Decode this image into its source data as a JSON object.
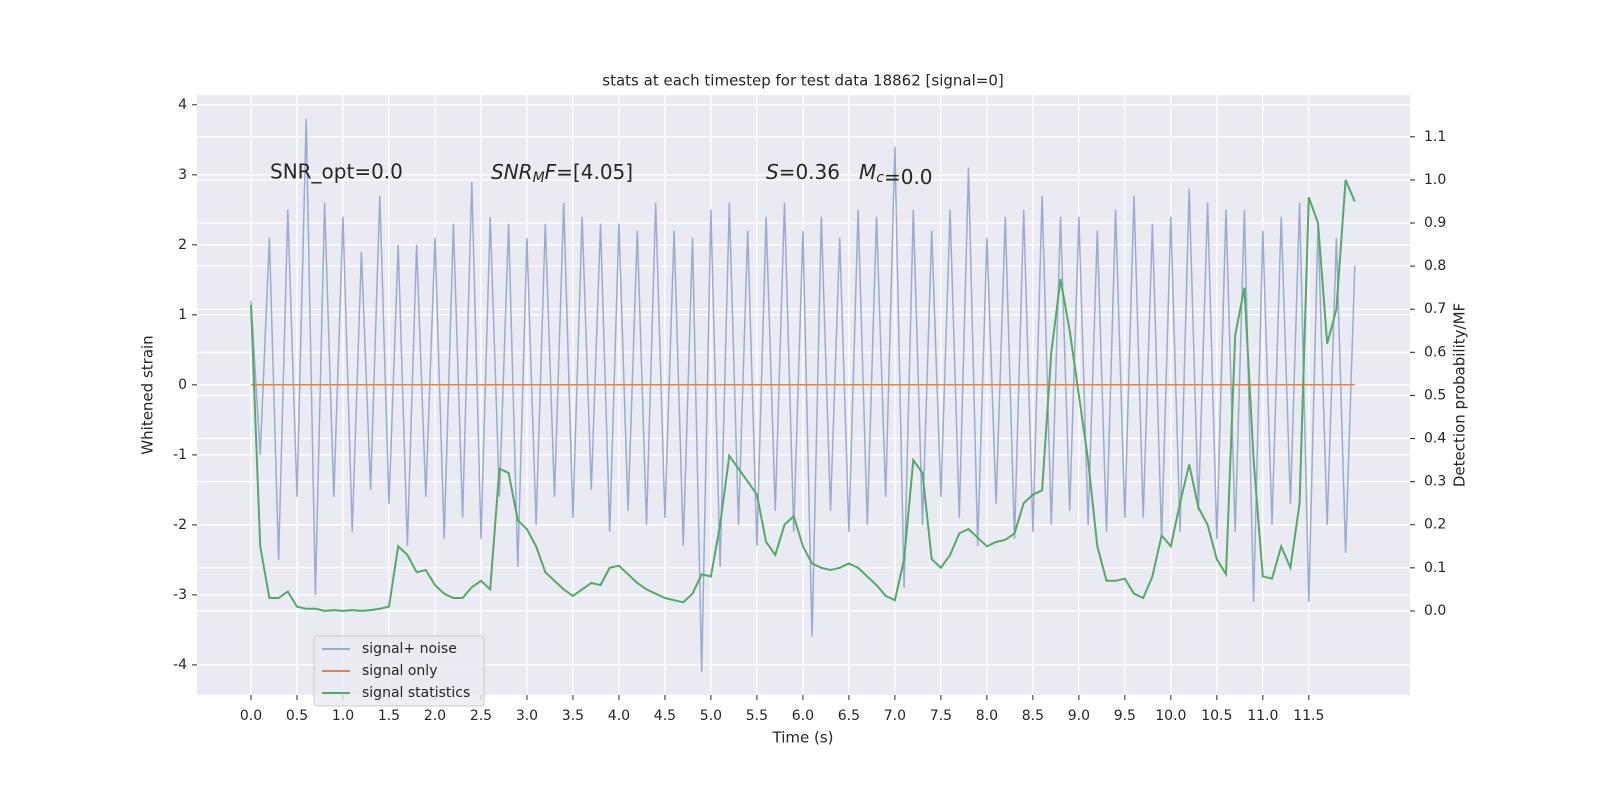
{
  "chart_data": {
    "type": "line",
    "title": "stats at each timestep for test data 18862 [signal=0]",
    "xlabel": "Time (s)",
    "ylabel": "Whitened strain",
    "y2label": "Detection probability/MF",
    "annotations": [
      {
        "text": "SNR_opt=0.0",
        "math": false
      },
      {
        "text": "SNR_MF=[4.05]",
        "math": true
      },
      {
        "text": "S=0.36",
        "math": true
      },
      {
        "text": "M_c=0.0",
        "math": true
      }
    ],
    "x": [
      0.0,
      0.1,
      0.2,
      0.3,
      0.4,
      0.5,
      0.6,
      0.7,
      0.8,
      0.9,
      1.0,
      1.1,
      1.2,
      1.3,
      1.4,
      1.5,
      1.6,
      1.7,
      1.8,
      1.9,
      2.0,
      2.1,
      2.2,
      2.3,
      2.4,
      2.5,
      2.6,
      2.7,
      2.8,
      2.9,
      3.0,
      3.1,
      3.2,
      3.3,
      3.4,
      3.5,
      3.6,
      3.7,
      3.8,
      3.9,
      4.0,
      4.1,
      4.2,
      4.3,
      4.4,
      4.5,
      4.6,
      4.7,
      4.8,
      4.9,
      5.0,
      5.1,
      5.2,
      5.3,
      5.4,
      5.5,
      5.6,
      5.7,
      5.8,
      5.9,
      6.0,
      6.1,
      6.2,
      6.3,
      6.4,
      6.5,
      6.6,
      6.7,
      6.8,
      6.9,
      7.0,
      7.1,
      7.2,
      7.3,
      7.4,
      7.5,
      7.6,
      7.7,
      7.8,
      7.9,
      8.0,
      8.1,
      8.2,
      8.3,
      8.4,
      8.5,
      8.6,
      8.7,
      8.8,
      8.9,
      9.0,
      9.1,
      9.2,
      9.3,
      9.4,
      9.5,
      9.6,
      9.7,
      9.8,
      9.9,
      10.0,
      10.1,
      10.2,
      10.3,
      10.4,
      10.5,
      10.6,
      10.7,
      10.8,
      10.9,
      11.0,
      11.1,
      11.2,
      11.3,
      11.4,
      11.5,
      11.6,
      11.7,
      11.8,
      11.9,
      12.0
    ],
    "series": [
      {
        "name": "signal+ noise",
        "color": "#9aabd0",
        "axis": "y",
        "values": [
          1.2,
          -1.0,
          2.1,
          -2.5,
          2.5,
          -1.6,
          3.8,
          -3.0,
          2.6,
          -1.6,
          2.4,
          -2.1,
          1.9,
          -1.5,
          2.7,
          -1.7,
          2.0,
          -2.3,
          2.0,
          -1.6,
          2.1,
          -2.2,
          2.3,
          -1.9,
          2.9,
          -2.2,
          2.4,
          -1.6,
          2.3,
          -2.6,
          2.1,
          -2.0,
          2.3,
          -1.6,
          2.6,
          -1.9,
          2.4,
          -1.5,
          2.3,
          -2.1,
          2.3,
          -1.8,
          2.2,
          -2.0,
          2.6,
          -1.9,
          2.2,
          -2.3,
          2.1,
          -4.1,
          2.5,
          -2.6,
          2.6,
          -2.0,
          2.2,
          -2.3,
          2.4,
          -1.8,
          2.6,
          -2.1,
          2.2,
          -3.6,
          2.4,
          -1.8,
          2.1,
          -2.1,
          2.5,
          -2.0,
          2.4,
          -1.6,
          3.4,
          -2.9,
          2.5,
          -2.0,
          2.2,
          -1.6,
          2.5,
          -1.9,
          3.1,
          -2.3,
          2.1,
          -1.7,
          2.4,
          -2.2,
          2.5,
          -2.1,
          2.7,
          -2.0,
          2.4,
          -1.8,
          2.4,
          -2.0,
          2.2,
          -2.1,
          2.5,
          -1.9,
          2.7,
          -1.9,
          2.3,
          -2.2,
          2.4,
          -2.1,
          2.8,
          -1.8,
          2.6,
          -2.2,
          2.5,
          -2.1,
          2.5,
          -3.1,
          2.2,
          -2.0,
          2.4,
          -1.7,
          2.6,
          -3.1,
          2.3,
          -2.0,
          2.1,
          -2.4,
          1.7
        ]
      },
      {
        "name": "signal only",
        "color": "#dd8452",
        "axis": "y",
        "values": [
          0,
          0,
          0,
          0,
          0,
          0,
          0,
          0,
          0,
          0,
          0,
          0,
          0,
          0,
          0,
          0,
          0,
          0,
          0,
          0,
          0,
          0,
          0,
          0,
          0,
          0,
          0,
          0,
          0,
          0,
          0,
          0,
          0,
          0,
          0,
          0,
          0,
          0,
          0,
          0,
          0,
          0,
          0,
          0,
          0,
          0,
          0,
          0,
          0,
          0,
          0,
          0,
          0,
          0,
          0,
          0,
          0,
          0,
          0,
          0,
          0,
          0,
          0,
          0,
          0,
          0,
          0,
          0,
          0,
          0,
          0,
          0,
          0,
          0,
          0,
          0,
          0,
          0,
          0,
          0,
          0,
          0,
          0,
          0,
          0,
          0,
          0,
          0,
          0,
          0,
          0,
          0,
          0,
          0,
          0,
          0,
          0,
          0,
          0,
          0,
          0,
          0,
          0,
          0,
          0,
          0,
          0,
          0,
          0,
          0,
          0,
          0,
          0,
          0,
          0,
          0,
          0,
          0,
          0,
          0,
          0
        ]
      },
      {
        "name": "signal statistics",
        "color": "#55a868",
        "axis": "y2",
        "values": [
          0.71,
          0.15,
          0.03,
          0.03,
          0.045,
          0.01,
          0.005,
          0.005,
          0.0,
          0.002,
          0.0,
          0.002,
          0.0,
          0.002,
          0.005,
          0.01,
          0.15,
          0.13,
          0.09,
          0.095,
          0.06,
          0.04,
          0.03,
          0.03,
          0.055,
          0.07,
          0.05,
          0.33,
          0.32,
          0.21,
          0.19,
          0.15,
          0.09,
          0.07,
          0.05,
          0.035,
          0.05,
          0.065,
          0.06,
          0.1,
          0.105,
          0.085,
          0.065,
          0.05,
          0.04,
          0.03,
          0.025,
          0.02,
          0.04,
          0.085,
          0.08,
          0.2,
          0.36,
          0.33,
          0.3,
          0.27,
          0.16,
          0.13,
          0.2,
          0.22,
          0.15,
          0.11,
          0.1,
          0.095,
          0.1,
          0.11,
          0.1,
          0.08,
          0.06,
          0.035,
          0.025,
          0.12,
          0.35,
          0.32,
          0.12,
          0.1,
          0.13,
          0.18,
          0.19,
          0.17,
          0.15,
          0.16,
          0.165,
          0.18,
          0.25,
          0.27,
          0.28,
          0.6,
          0.77,
          0.65,
          0.5,
          0.35,
          0.15,
          0.07,
          0.07,
          0.075,
          0.04,
          0.03,
          0.08,
          0.175,
          0.15,
          0.25,
          0.34,
          0.24,
          0.2,
          0.12,
          0.085,
          0.64,
          0.75,
          0.35,
          0.08,
          0.075,
          0.15,
          0.1,
          0.25,
          0.96,
          0.9,
          0.62,
          0.7,
          1.0,
          0.95
        ]
      }
    ],
    "xlim": [
      -0.587,
      12.6
    ],
    "xticks": [
      {
        "value": 0,
        "label": "0.0"
      },
      0.5,
      {
        "value": 1,
        "label": "1.0"
      },
      1.5,
      {
        "value": 2,
        "label": "2.0"
      },
      2.5,
      {
        "value": 3,
        "label": "3.0"
      },
      3.5,
      {
        "value": 4,
        "label": "4.0"
      },
      4.5,
      {
        "value": 5,
        "label": "5.0"
      },
      5.5,
      {
        "value": 6,
        "label": "6.0"
      },
      6.5,
      {
        "value": 7,
        "label": "7.0"
      },
      7.5,
      {
        "value": 8,
        "label": "8.0"
      },
      8.5,
      {
        "value": 9,
        "label": "9.0"
      },
      9.5,
      {
        "value": 10,
        "label": "10.0"
      },
      10.5,
      {
        "value": 11,
        "label": "11.0"
      },
      11.5
    ],
    "ylim": [
      -4.43,
      4.14
    ],
    "yticks": [
      -4,
      -3,
      -2,
      -1,
      0,
      1,
      2,
      3,
      4
    ],
    "y2lim": [
      -0.195,
      1.197
    ],
    "y2ticks": [
      {
        "value": 0,
        "label": "0.0"
      },
      0.1,
      0.2,
      0.3,
      0.4,
      0.5,
      0.6,
      0.7,
      0.8,
      0.9,
      {
        "value": 1,
        "label": "1.0"
      },
      1.1
    ],
    "grid": true,
    "legend": "lower left"
  }
}
